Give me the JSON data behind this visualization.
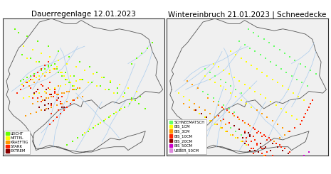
{
  "title_left": "Dauerregenlage 12.01.2023",
  "title_right": "Wintereinbruch 21.01.2023 | Schneedecke",
  "title_fontsize": 7.5,
  "background_color": "#ffffff",
  "map_facecolor": "#f0f0f0",
  "river_color": "#aaccee",
  "border_linecolor": "#555555",
  "border_color": "#333333",
  "germany_lon_range": [
    5.8,
    15.1
  ],
  "germany_lat_range": [
    47.2,
    55.1
  ],
  "legend_left": {
    "labels": [
      "LEICHT",
      "MITTEL",
      "KRAEFTIG",
      "STARK",
      "EXTREM"
    ],
    "colors": [
      "#66ff00",
      "#ffff00",
      "#ff9900",
      "#ff2200",
      "#880000"
    ]
  },
  "legend_right": {
    "labels": [
      "SCHNEEMATSCH",
      "BIS_1CM",
      "BIS_3CM",
      "BIS_10CM",
      "BIS_20CM",
      "BIS_50CM",
      "UEBER_50CM"
    ],
    "colors": [
      "#66ff66",
      "#ffff00",
      "#ff9900",
      "#ff2200",
      "#880000",
      "#cc00cc",
      "#dd88dd"
    ]
  },
  "left_points": {
    "lon": [
      6.8,
      7.0,
      7.2,
      7.4,
      7.6,
      7.8,
      8.0,
      8.2,
      8.4,
      8.6,
      8.8,
      9.0,
      9.2,
      9.4,
      9.6,
      9.8,
      10.0,
      6.9,
      7.1,
      7.3,
      7.5,
      7.7,
      7.9,
      8.1,
      8.3,
      8.5,
      8.7,
      8.9,
      9.1,
      9.3,
      9.5,
      9.7,
      9.9,
      7.0,
      7.3,
      7.6,
      7.9,
      8.2,
      8.5,
      8.8,
      9.1,
      9.4,
      9.7,
      10.0,
      10.3,
      7.5,
      7.8,
      8.1,
      8.4,
      8.7,
      9.0,
      9.3,
      9.6,
      9.9,
      10.2,
      8.0,
      8.3,
      8.6,
      8.9,
      9.2,
      9.5,
      9.8,
      6.5,
      6.7,
      7.2,
      7.8,
      8.4,
      9.0,
      9.6,
      10.2,
      10.8,
      11.2,
      11.6,
      12.0,
      12.4,
      12.8,
      13.2,
      13.6,
      14.0,
      7.0,
      7.5,
      8.0,
      8.5,
      9.0,
      9.5,
      10.0,
      10.5,
      11.0,
      11.5,
      12.0,
      12.5,
      13.0,
      13.5,
      7.2,
      7.7,
      8.2,
      8.7,
      9.2,
      9.7,
      10.2,
      10.7,
      11.2,
      11.7,
      12.2,
      12.7,
      13.2,
      6.9,
      7.4,
      7.9,
      8.4,
      8.9,
      9.4,
      9.9,
      10.4,
      10.9,
      11.4,
      11.9,
      12.4,
      8.3,
      8.6,
      8.9,
      9.2,
      9.5,
      9.8,
      10.1,
      7.1,
      7.4,
      7.7,
      8.0,
      8.3,
      8.6,
      8.9,
      9.2,
      9.5,
      9.8,
      10.1,
      10.4,
      6.6,
      6.8,
      7.0,
      7.2,
      7.4,
      7.6,
      7.8,
      8.0,
      8.2,
      8.4,
      9.5,
      9.8,
      10.1,
      10.4,
      10.7,
      11.0,
      11.3,
      11.6,
      11.9,
      12.2,
      12.5,
      12.8,
      13.1,
      13.4,
      13.7,
      10.5,
      10.8,
      11.1,
      11.4,
      11.7,
      12.0,
      12.3,
      12.6,
      8.5,
      8.7,
      8.9,
      9.1,
      9.3,
      9.5,
      9.7,
      9.9,
      7.3,
      7.6,
      7.9,
      8.2,
      8.5,
      8.8,
      13.2,
      13.5,
      13.8,
      14.1,
      14.4
    ],
    "lat": [
      51.5,
      51.6,
      51.7,
      51.8,
      51.9,
      52.0,
      52.1,
      52.2,
      52.3,
      52.4,
      52.5,
      52.0,
      51.8,
      51.6,
      51.4,
      51.2,
      51.0,
      51.3,
      51.4,
      51.5,
      51.6,
      51.7,
      51.8,
      51.9,
      52.0,
      52.1,
      52.2,
      52.3,
      52.0,
      51.8,
      51.6,
      51.4,
      51.2,
      50.5,
      50.6,
      50.7,
      50.8,
      50.9,
      51.0,
      51.1,
      51.2,
      51.3,
      51.4,
      51.5,
      51.6,
      50.2,
      50.3,
      50.4,
      50.5,
      50.6,
      50.7,
      50.8,
      50.9,
      51.0,
      51.1,
      49.8,
      49.9,
      50.0,
      50.1,
      50.2,
      50.3,
      50.4,
      54.5,
      54.3,
      54.1,
      53.8,
      53.5,
      53.2,
      52.9,
      52.6,
      52.3,
      52.0,
      51.7,
      51.4,
      51.1,
      50.8,
      50.5,
      50.2,
      49.9,
      53.5,
      53.3,
      53.1,
      52.9,
      52.7,
      52.5,
      52.3,
      52.1,
      51.9,
      51.7,
      51.5,
      51.3,
      51.1,
      50.9,
      52.8,
      52.6,
      52.4,
      52.2,
      52.0,
      51.8,
      51.6,
      51.4,
      51.2,
      51.0,
      50.8,
      50.6,
      50.4,
      53.0,
      52.8,
      52.6,
      52.4,
      52.2,
      52.0,
      51.8,
      51.6,
      51.4,
      51.2,
      51.0,
      50.8,
      50.5,
      50.6,
      50.7,
      50.8,
      50.9,
      51.0,
      51.1,
      49.5,
      49.6,
      49.7,
      49.8,
      49.9,
      50.0,
      50.1,
      50.2,
      50.3,
      50.4,
      50.5,
      50.6,
      50.8,
      51.0,
      51.2,
      51.4,
      51.6,
      51.8,
      52.0,
      52.2,
      52.4,
      52.6,
      47.8,
      48.0,
      48.2,
      48.4,
      48.6,
      48.8,
      49.0,
      49.2,
      49.4,
      49.6,
      49.8,
      50.0,
      50.2,
      50.4,
      50.6,
      48.5,
      48.7,
      48.9,
      49.1,
      49.3,
      49.5,
      49.7,
      49.9,
      49.0,
      49.2,
      49.4,
      49.6,
      49.8,
      50.0,
      50.2,
      50.4,
      51.2,
      51.4,
      51.6,
      51.8,
      52.0,
      52.2,
      52.5,
      52.8,
      53.1,
      53.4,
      53.7
    ],
    "categories": [
      0,
      0,
      0,
      0,
      0,
      0,
      0,
      0,
      0,
      0,
      0,
      0,
      0,
      0,
      0,
      0,
      0,
      1,
      1,
      1,
      1,
      1,
      1,
      1,
      1,
      1,
      1,
      1,
      1,
      1,
      1,
      1,
      1,
      1,
      1,
      1,
      1,
      1,
      1,
      1,
      1,
      1,
      1,
      1,
      1,
      2,
      2,
      2,
      2,
      2,
      2,
      2,
      2,
      2,
      2,
      2,
      2,
      2,
      2,
      2,
      2,
      2,
      0,
      0,
      0,
      0,
      0,
      0,
      0,
      0,
      0,
      0,
      0,
      0,
      0,
      0,
      0,
      0,
      0,
      1,
      1,
      1,
      1,
      1,
      1,
      1,
      1,
      1,
      1,
      1,
      1,
      1,
      1,
      1,
      1,
      1,
      1,
      1,
      1,
      1,
      1,
      1,
      1,
      1,
      1,
      1,
      0,
      0,
      0,
      0,
      0,
      0,
      0,
      0,
      0,
      0,
      0,
      0,
      2,
      2,
      2,
      2,
      2,
      2,
      2,
      2,
      2,
      2,
      2,
      2,
      2,
      2,
      2,
      2,
      2,
      2,
      2,
      3,
      3,
      3,
      3,
      3,
      3,
      3,
      3,
      3,
      3,
      0,
      0,
      0,
      0,
      0,
      0,
      0,
      0,
      0,
      0,
      0,
      0,
      0,
      0,
      0,
      1,
      1,
      1,
      1,
      1,
      1,
      1,
      1,
      3,
      3,
      3,
      3,
      3,
      3,
      3,
      3,
      2,
      2,
      2,
      2,
      2,
      2,
      0,
      0,
      0,
      0,
      0
    ]
  },
  "left_cluster": {
    "lon": [
      7.8,
      8.0,
      8.2,
      8.4,
      8.6,
      8.8,
      9.0,
      9.2,
      7.6,
      7.4,
      8.0,
      8.5,
      9.0,
      8.3,
      8.7,
      9.1,
      7.9,
      8.2,
      8.6,
      7.7,
      8.1,
      8.3,
      8.5,
      8.9,
      9.1,
      9.3,
      7.5,
      8.0,
      8.4,
      8.8,
      9.2,
      7.8,
      8.2,
      8.6,
      9.0,
      8.4,
      8.8,
      9.0,
      8.6
    ],
    "lat": [
      50.5,
      50.3,
      50.1,
      49.9,
      50.7,
      51.0,
      50.5,
      50.0,
      50.8,
      51.1,
      51.3,
      51.4,
      51.2,
      50.8,
      50.6,
      50.3,
      50.0,
      49.8,
      49.6,
      50.9,
      51.2,
      51.0,
      50.7,
      50.4,
      50.2,
      50.0,
      50.5,
      50.6,
      50.2,
      50.9,
      50.6,
      51.0,
      50.4,
      50.1,
      49.8,
      51.1,
      50.8,
      50.5,
      50.2
    ],
    "categories": [
      3,
      3,
      4,
      4,
      4,
      3,
      3,
      4,
      4,
      3,
      3,
      3,
      2,
      2,
      3,
      3,
      4,
      4,
      3,
      3,
      3,
      4,
      3,
      3,
      3,
      4,
      3,
      3,
      4,
      3,
      3,
      4,
      4,
      3,
      3,
      3,
      3,
      4,
      4
    ]
  },
  "right_points": {
    "lon": [
      10.5,
      10.8,
      11.1,
      11.4,
      11.7,
      12.0,
      12.3,
      12.6,
      12.9,
      13.2,
      13.5,
      13.8,
      14.1,
      14.4,
      10.0,
      10.3,
      10.6,
      10.9,
      11.2,
      11.5,
      11.8,
      12.1,
      12.4,
      12.7,
      13.0,
      13.3,
      13.6,
      13.9,
      9.5,
      9.8,
      10.1,
      10.4,
      10.7,
      11.0,
      11.3,
      11.6,
      11.9,
      12.2,
      12.5,
      12.8,
      13.1,
      13.4,
      13.7,
      8.5,
      8.8,
      9.1,
      9.4,
      9.7,
      10.0,
      10.3,
      10.6,
      10.9,
      11.2,
      11.5,
      11.8,
      12.1,
      12.4,
      12.7,
      13.0,
      13.3,
      8.0,
      8.3,
      8.6,
      8.9,
      9.2,
      9.5,
      9.8,
      10.1,
      10.4,
      10.7,
      11.0,
      11.3,
      11.6,
      11.9,
      12.2,
      12.5,
      12.8,
      8.2,
      8.5,
      8.8,
      9.1,
      9.4,
      9.7,
      10.0,
      10.3,
      10.6,
      10.9,
      11.2,
      11.5,
      11.8,
      12.1,
      12.4,
      9.0,
      9.3,
      9.6,
      9.9,
      10.2,
      10.5,
      10.8,
      11.1,
      11.4,
      11.7,
      12.0,
      12.3,
      12.6,
      12.9,
      8.8,
      9.1,
      9.4,
      9.7,
      10.0,
      10.3,
      10.6,
      10.9,
      11.2,
      11.5,
      11.8,
      7.5,
      7.8,
      8.1,
      8.4,
      8.7,
      9.0,
      9.3,
      9.6,
      9.9,
      10.2,
      10.5,
      10.8,
      11.1,
      6.8,
      7.1,
      7.4,
      7.7,
      8.0,
      8.3,
      8.6,
      8.9,
      9.2,
      9.5,
      9.8,
      10.1,
      10.4,
      6.5,
      6.8,
      7.1,
      7.4,
      7.7,
      8.0,
      8.3,
      8.6,
      8.9,
      9.2,
      9.5,
      7.0,
      7.3,
      7.6,
      7.9,
      8.2,
      8.5,
      8.8,
      9.1,
      9.4,
      9.7,
      8.0,
      8.3,
      8.6,
      8.9,
      9.2,
      9.5,
      9.8,
      10.1,
      9.5,
      9.8,
      10.1,
      10.4,
      10.7,
      11.0,
      11.3,
      11.6,
      11.9,
      12.2,
      10.5,
      10.8,
      11.1,
      11.4,
      11.7,
      12.0,
      12.3,
      12.6,
      12.9,
      13.2,
      13.5,
      13.6,
      13.7,
      13.8,
      13.9,
      14.0,
      14.1,
      14.2,
      11.0,
      11.3,
      11.6,
      11.9,
      12.2,
      12.5,
      12.8,
      13.1,
      13.4,
      13.7,
      14.0
    ],
    "lat": [
      54.5,
      54.3,
      54.1,
      53.9,
      53.7,
      53.5,
      53.3,
      53.1,
      52.9,
      52.7,
      52.5,
      52.3,
      52.1,
      51.9,
      53.8,
      53.6,
      53.4,
      53.2,
      53.0,
      52.8,
      52.6,
      52.4,
      52.2,
      52.0,
      51.8,
      51.6,
      51.4,
      51.2,
      53.2,
      53.0,
      52.8,
      52.6,
      52.4,
      52.2,
      52.0,
      51.8,
      51.6,
      51.4,
      51.2,
      51.0,
      50.8,
      50.6,
      50.4,
      52.5,
      52.3,
      52.1,
      51.9,
      51.7,
      51.5,
      51.3,
      51.1,
      50.9,
      50.7,
      50.5,
      50.3,
      50.1,
      49.9,
      49.7,
      49.5,
      49.3,
      51.8,
      51.6,
      51.4,
      51.2,
      51.0,
      50.8,
      50.6,
      50.4,
      50.2,
      50.0,
      49.8,
      49.6,
      49.4,
      49.2,
      49.0,
      48.8,
      48.6,
      50.5,
      50.3,
      50.1,
      49.9,
      49.7,
      49.5,
      49.3,
      49.1,
      48.9,
      48.7,
      48.5,
      48.3,
      48.1,
      47.9,
      47.7,
      50.0,
      49.8,
      49.6,
      49.4,
      49.2,
      49.0,
      48.8,
      48.6,
      48.4,
      48.2,
      48.0,
      47.8,
      47.6,
      47.4,
      49.5,
      49.3,
      49.1,
      48.9,
      48.7,
      48.5,
      48.3,
      48.1,
      47.9,
      47.7,
      47.5,
      49.8,
      49.6,
      49.4,
      49.2,
      49.0,
      48.8,
      48.6,
      48.4,
      48.2,
      48.0,
      47.8,
      47.6,
      47.4,
      50.2,
      50.0,
      49.8,
      49.6,
      49.4,
      49.2,
      49.0,
      48.8,
      48.6,
      48.4,
      48.2,
      48.0,
      47.8,
      50.8,
      50.6,
      50.4,
      50.2,
      50.0,
      49.8,
      49.6,
      49.4,
      49.2,
      49.0,
      48.8,
      51.5,
      51.3,
      51.1,
      50.9,
      50.7,
      50.5,
      50.3,
      50.1,
      49.9,
      49.7,
      52.2,
      52.0,
      51.8,
      51.6,
      51.4,
      51.2,
      51.0,
      50.8,
      48.8,
      48.6,
      48.4,
      48.2,
      48.0,
      47.8,
      47.6,
      47.4,
      47.2,
      47.0,
      47.8,
      47.6,
      47.4,
      47.2,
      47.0,
      48.0,
      48.2,
      48.4,
      48.6,
      48.8,
      49.0,
      49.2,
      49.4,
      49.6,
      49.8,
      50.0,
      50.2,
      50.4,
      48.5,
      48.3,
      48.1,
      47.9,
      47.7,
      47.5,
      47.3,
      47.1,
      47.0,
      47.2,
      47.4
    ],
    "categories": [
      0,
      0,
      0,
      0,
      0,
      0,
      0,
      0,
      0,
      0,
      0,
      0,
      0,
      0,
      0,
      0,
      0,
      0,
      0,
      0,
      0,
      0,
      0,
      0,
      0,
      0,
      0,
      0,
      1,
      1,
      1,
      1,
      1,
      1,
      1,
      1,
      1,
      1,
      1,
      1,
      1,
      1,
      1,
      1,
      1,
      1,
      1,
      1,
      1,
      1,
      1,
      1,
      1,
      1,
      1,
      1,
      1,
      1,
      1,
      1,
      1,
      1,
      1,
      1,
      1,
      1,
      1,
      1,
      1,
      1,
      2,
      2,
      2,
      2,
      2,
      2,
      2,
      2,
      2,
      2,
      2,
      2,
      2,
      2,
      2,
      2,
      3,
      3,
      3,
      3,
      3,
      3,
      3,
      3,
      3,
      3,
      3,
      3,
      3,
      3,
      3,
      3,
      3,
      3,
      3,
      3,
      3,
      3,
      3,
      4,
      4,
      4,
      4,
      4,
      4,
      4,
      4,
      4,
      4,
      4,
      2,
      2,
      2,
      2,
      2,
      2,
      2,
      2,
      2,
      2,
      2,
      2,
      2,
      1,
      1,
      1,
      1,
      1,
      1,
      1,
      1,
      1,
      1,
      1,
      1,
      1,
      2,
      2,
      2,
      2,
      2,
      2,
      2,
      2,
      2,
      2,
      2,
      0,
      0,
      0,
      0,
      0,
      0,
      0,
      0,
      0,
      0,
      0,
      0,
      0,
      0,
      0,
      0,
      0,
      0,
      3,
      3,
      3,
      3,
      3,
      3,
      3,
      3,
      3,
      3,
      2,
      2,
      2,
      2,
      2,
      3,
      3,
      3,
      3,
      3,
      3,
      3,
      3,
      3,
      3,
      3,
      3,
      3,
      4,
      4,
      4,
      4,
      4,
      4,
      5,
      5,
      5,
      5,
      5
    ]
  },
  "right_cluster": {
    "lon": [
      10.5,
      10.7,
      10.9,
      11.1,
      11.3,
      11.5,
      10.3,
      10.6,
      10.8,
      10.4,
      10.2,
      10.6,
      10.9,
      11.0,
      11.2,
      11.4,
      10.8,
      10.5,
      10.3
    ],
    "lat": [
      47.8,
      47.6,
      47.5,
      47.4,
      47.3,
      47.2,
      47.9,
      47.5,
      47.3,
      48.0,
      48.2,
      48.4,
      48.1,
      47.9,
      47.7,
      47.6,
      48.3,
      48.5,
      48.6
    ],
    "categories": [
      3,
      3,
      4,
      4,
      3,
      3,
      4,
      4,
      3,
      3,
      4,
      4,
      3,
      3,
      4,
      4,
      3,
      4,
      3
    ]
  }
}
